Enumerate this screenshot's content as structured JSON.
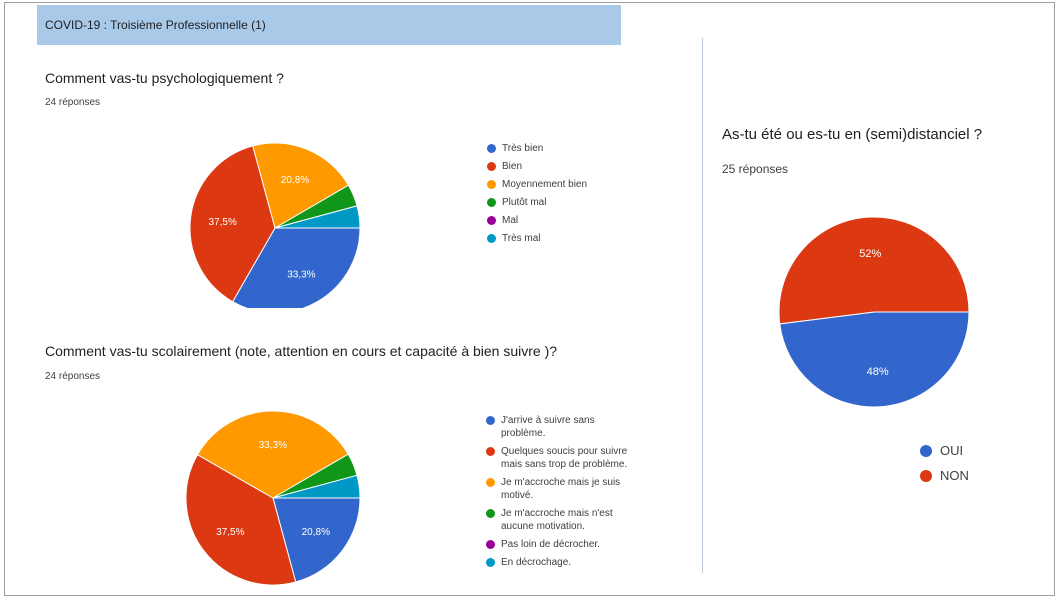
{
  "header": {
    "title": "COVID-19 : Troisième Professionnelle (1)"
  },
  "q1": {
    "title": "Comment vas-tu psychologiquement ?",
    "count": "24 réponses"
  },
  "q2": {
    "title": "Comment vas-tu scolairement (note, attention en cours et capacité à bien suivre )?",
    "count": "24 réponses"
  },
  "q3": {
    "title": "As-tu été ou es-tu en (semi)distanciel ?",
    "count": "25 réponses"
  },
  "chart_data": [
    {
      "type": "pie",
      "title": "Comment vas-tu psychologiquement ?",
      "categories": [
        "Très bien",
        "Bien",
        "Moyennement bien",
        "Plutôt mal",
        "Mal",
        "Très mal"
      ],
      "values": [
        33.3,
        37.5,
        20.8,
        4.2,
        0,
        4.2
      ],
      "labels": [
        "33,3%",
        "37,5%",
        "20,8%",
        "",
        "",
        ""
      ],
      "colors": [
        "#3366cc",
        "#dc3912",
        "#ff9900",
        "#109618",
        "#990099",
        "#0099c6"
      ],
      "legend": "right"
    },
    {
      "type": "pie",
      "title": "Comment vas-tu scolairement (note, attention en cours et capacité à bien suivre )?",
      "categories": [
        "J'arrive à suivre sans problème.",
        "Quelques soucis pour suivre mais sans trop de problème.",
        "Je m'accroche mais je suis motivé.",
        "Je m'accroche mais n'est aucune motivation.",
        "Pas loin de décrocher.",
        "En décrochage."
      ],
      "values": [
        20.8,
        37.5,
        33.3,
        4.2,
        0,
        4.2
      ],
      "labels": [
        "20,8%",
        "37,5%",
        "33,3%",
        "",
        "",
        ""
      ],
      "colors": [
        "#3366cc",
        "#dc3912",
        "#ff9900",
        "#109618",
        "#990099",
        "#0099c6"
      ],
      "legend": "right"
    },
    {
      "type": "pie",
      "title": "As-tu été ou es-tu en (semi)distanciel ?",
      "categories": [
        "OUI",
        "NON"
      ],
      "values": [
        48,
        52
      ],
      "labels": [
        "48%",
        "52%"
      ],
      "colors": [
        "#3366cc",
        "#dc3912"
      ],
      "legend": "bottom"
    }
  ]
}
